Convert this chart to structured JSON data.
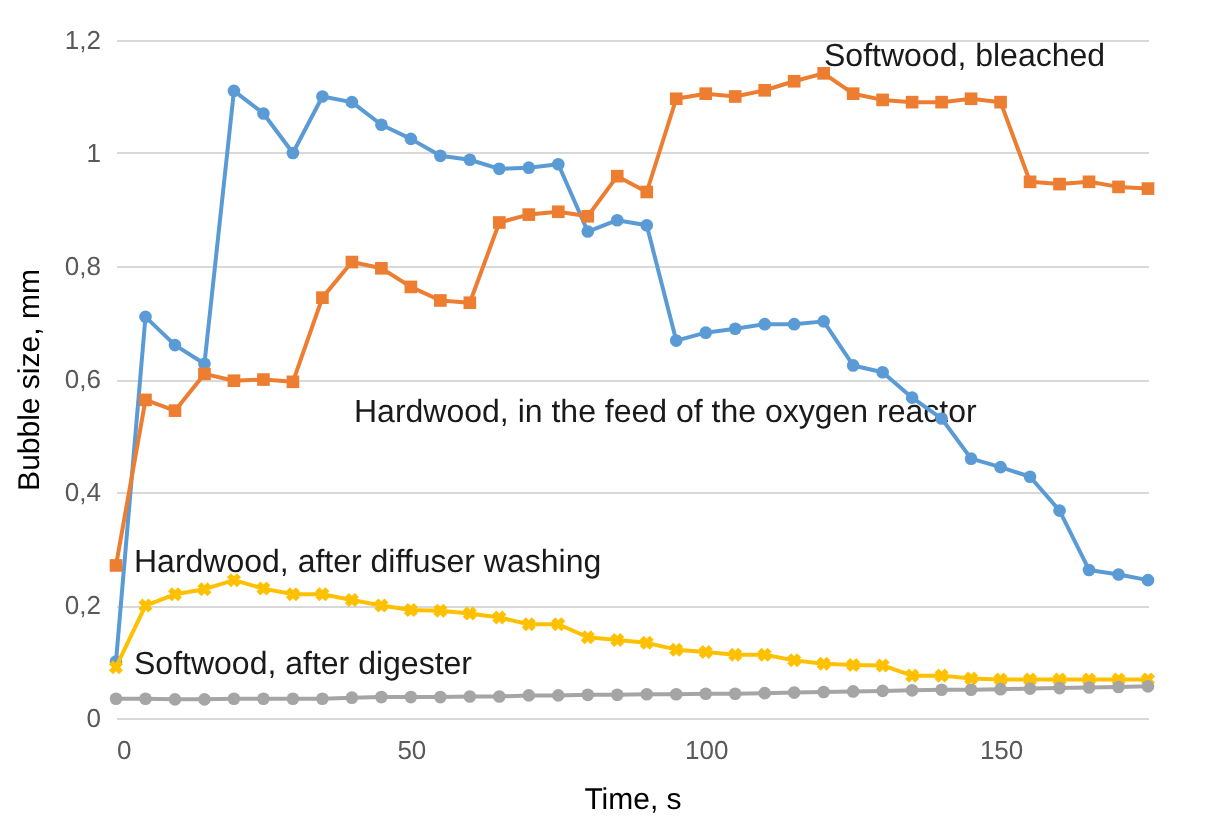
{
  "chart_data": {
    "type": "line",
    "xlabel": "Time, s",
    "ylabel": "Bubble size, mm",
    "x": [
      0,
      5,
      10,
      15,
      20,
      25,
      30,
      35,
      40,
      45,
      50,
      55,
      60,
      65,
      70,
      75,
      80,
      85,
      90,
      95,
      100,
      105,
      110,
      115,
      120,
      125,
      130,
      135,
      140,
      145,
      150,
      155,
      160,
      165,
      170,
      175
    ],
    "series": [
      {
        "color": "#5b9bd5",
        "marker": "circle",
        "values": [
          0.1,
          0.71,
          0.66,
          0.627,
          1.11,
          1.07,
          1.0,
          1.1,
          1.09,
          1.05,
          1.025,
          0.995,
          0.988,
          0.972,
          0.974,
          0.98,
          0.861,
          0.881,
          0.872,
          0.668,
          0.682,
          0.689,
          0.697,
          0.697,
          0.702,
          0.624,
          0.612,
          0.567,
          0.53,
          0.459,
          0.444,
          0.427,
          0.367,
          0.262,
          0.254,
          0.244
        ]
      },
      {
        "color": "#ed7d31",
        "marker": "square",
        "values": [
          0.27,
          0.563,
          0.544,
          0.609,
          0.597,
          0.599,
          0.595,
          0.744,
          0.807,
          0.796,
          0.763,
          0.739,
          0.735,
          0.877,
          0.891,
          0.896,
          0.888,
          0.959,
          0.931,
          1.096,
          1.105,
          1.1,
          1.111,
          1.127,
          1.141,
          1.105,
          1.094,
          1.09,
          1.09,
          1.096,
          1.09,
          0.949,
          0.945,
          0.949,
          0.94,
          0.937
        ]
      },
      {
        "color": "#ffc000",
        "marker": "cross",
        "values": [
          0.09,
          0.199,
          0.219,
          0.228,
          0.244,
          0.229,
          0.219,
          0.219,
          0.209,
          0.199,
          0.191,
          0.19,
          0.185,
          0.178,
          0.166,
          0.166,
          0.143,
          0.138,
          0.133,
          0.121,
          0.117,
          0.112,
          0.112,
          0.102,
          0.096,
          0.094,
          0.093,
          0.075,
          0.075,
          0.07,
          0.068,
          0.068,
          0.068,
          0.068,
          0.068,
          0.068
        ]
      },
      {
        "color": "#a5a5a5",
        "marker": "circle",
        "values": [
          0.034,
          0.034,
          0.033,
          0.033,
          0.034,
          0.034,
          0.034,
          0.034,
          0.036,
          0.037,
          0.037,
          0.037,
          0.038,
          0.038,
          0.04,
          0.04,
          0.041,
          0.041,
          0.042,
          0.042,
          0.043,
          0.043,
          0.044,
          0.045,
          0.046,
          0.047,
          0.048,
          0.049,
          0.05,
          0.05,
          0.051,
          0.052,
          0.053,
          0.054,
          0.055,
          0.056
        ]
      }
    ],
    "xlim": [
      0,
      175
    ],
    "xticks": [
      0,
      50,
      100,
      150
    ],
    "ylim": [
      0,
      1.2
    ],
    "yticks": [
      {
        "value": 0,
        "label": "0"
      },
      {
        "value": 0.2,
        "label": "0,2"
      },
      {
        "value": 0.4,
        "label": "0,4"
      },
      {
        "value": 0.6,
        "label": "0,6"
      },
      {
        "value": 0.8,
        "label": "0,8"
      },
      {
        "value": 1,
        "label": "1"
      },
      {
        "value": 1.2,
        "label": "1,2"
      }
    ],
    "grid": "y",
    "line_style": "solid",
    "annotations": [
      "Softwood, bleached",
      "Hardwood, in the feed of the oxygen reactor",
      "Hardwood, after diffuser washing",
      "Softwood, after digester"
    ]
  }
}
